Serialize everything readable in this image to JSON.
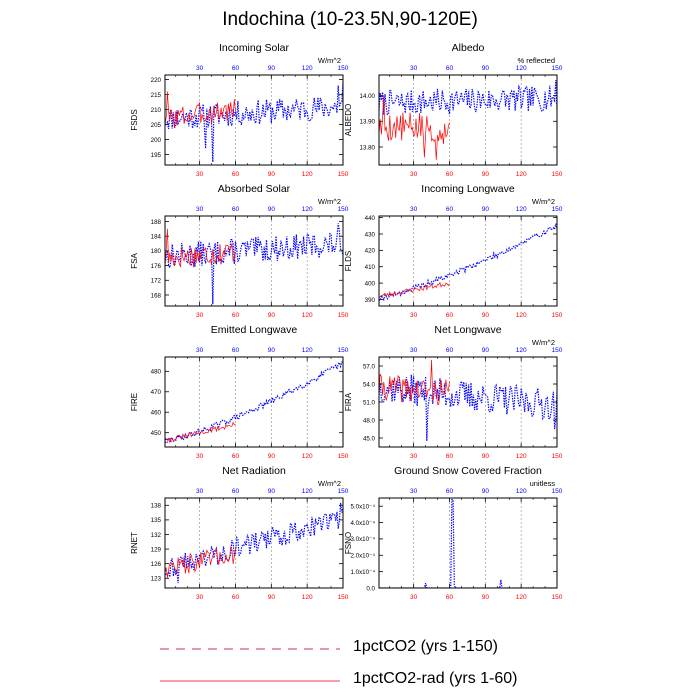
{
  "figure": {
    "title": "Indochina (10-23.5N,90-120E)",
    "series_colors": {
      "1pctCO2": "#0000ff",
      "1pctCO2-rad": "#ff0000"
    },
    "legend": [
      {
        "label": "1pctCO2 (yrs 1-150)",
        "color": "#0000ff",
        "style": "dashed"
      },
      {
        "label": "1pctCO2-rad (yrs 1-60)",
        "color": "#ff0000",
        "style": "solid"
      }
    ]
  },
  "chart_data": [
    {
      "id": "fsds",
      "type": "line",
      "title": "Incoming Solar",
      "ylabel": "FSDS",
      "unit": "W/m^2",
      "xlim": [
        1,
        150
      ],
      "ylim": [
        191.5,
        221.5
      ],
      "yticks": [
        195,
        200,
        205,
        210,
        215,
        220
      ],
      "yticklabels": [
        "195",
        "200",
        "205",
        "210",
        "215",
        "220"
      ],
      "xticks": [
        30,
        60,
        90,
        120,
        150
      ],
      "xticklabels": [
        "30",
        "60",
        "90",
        "120",
        "150"
      ],
      "grid_x": [
        30,
        60,
        90,
        120
      ],
      "series": [
        {
          "name": "1pctCO2",
          "base": [
            207,
            211
          ],
          "amp": 4.2,
          "seed": 11,
          "spikes": [
            [
              41,
              192.5
            ],
            [
              35,
              197
            ],
            [
              146,
              218
            ],
            [
              150,
              219
            ]
          ]
        },
        {
          "name": "1pctCO2-rad",
          "base": [
            207,
            210
          ],
          "amp": 3.8,
          "seed": 3,
          "spikes": [
            [
              3,
              216
            ]
          ]
        }
      ]
    },
    {
      "id": "albedo",
      "type": "line",
      "title": "Albedo",
      "ylabel": "ALBEDO",
      "unit": "% reflected",
      "xlim": [
        1,
        150
      ],
      "ylim": [
        13.73,
        14.08
      ],
      "yticks": [
        13.8,
        13.9,
        14.0
      ],
      "yticklabels": [
        "13.80",
        "13.90",
        "14.00"
      ],
      "xticks": [
        30,
        60,
        90,
        120,
        150
      ],
      "xticklabels": [
        "30",
        "60",
        "90",
        "120",
        "150"
      ],
      "grid_x": [
        30,
        60,
        90,
        120
      ],
      "series": [
        {
          "name": "1pctCO2",
          "base": [
            13.97,
            13.99
          ],
          "amp": 0.05,
          "seed": 7,
          "spikes": [
            [
              149,
              14.06
            ]
          ]
        },
        {
          "name": "1pctCO2-rad",
          "base": [
            13.88,
            13.87
          ],
          "amp": 0.06,
          "seed": 5,
          "spikes": [
            [
              5,
              14.0
            ],
            [
              49,
              13.75
            ],
            [
              39,
              13.76
            ]
          ]
        }
      ]
    },
    {
      "id": "fsa",
      "type": "line",
      "title": "Absorbed Solar",
      "ylabel": "FSA",
      "unit": "W/m^2",
      "xlim": [
        1,
        150
      ],
      "ylim": [
        165,
        189.5
      ],
      "yticks": [
        168,
        172,
        176,
        180,
        184,
        188
      ],
      "yticklabels": [
        "168",
        "172",
        "176",
        "180",
        "184",
        "188"
      ],
      "xticks": [
        30,
        60,
        90,
        120,
        150
      ],
      "xticklabels": [
        "30",
        "60",
        "90",
        "120",
        "150"
      ],
      "grid_x": [
        30,
        60,
        90,
        120
      ],
      "series": [
        {
          "name": "1pctCO2",
          "base": [
            178.5,
            182
          ],
          "amp": 3.5,
          "seed": 13,
          "spikes": [
            [
              41,
              165.5
            ],
            [
              146,
              187.5
            ]
          ]
        },
        {
          "name": "1pctCO2-rad",
          "base": [
            178,
            180
          ],
          "amp": 3.3,
          "seed": 17,
          "spikes": [
            [
              3,
              186
            ]
          ]
        }
      ]
    },
    {
      "id": "flds",
      "type": "line",
      "title": "Incoming Longwave",
      "ylabel": "FLDS",
      "unit": "W/m^2",
      "xlim": [
        1,
        150
      ],
      "ylim": [
        386,
        441
      ],
      "yticks": [
        390,
        400,
        410,
        420,
        430,
        440
      ],
      "yticklabels": [
        "390",
        "400",
        "410",
        "420",
        "430",
        "440"
      ],
      "xticks": [
        30,
        60,
        90,
        120,
        150
      ],
      "xticklabels": [
        "30",
        "60",
        "90",
        "120",
        "150"
      ],
      "grid_x": [
        30,
        60,
        90,
        120
      ],
      "series": [
        {
          "name": "1pctCO2",
          "base": [
            391,
            435
          ],
          "amp": 1.8,
          "seed": 19,
          "curve": 1.25
        },
        {
          "name": "1pctCO2-rad",
          "base": [
            392,
            400
          ],
          "amp": 1.6,
          "seed": 23
        }
      ]
    },
    {
      "id": "fire",
      "type": "line",
      "title": "Emitted Longwave",
      "ylabel": "FIRE",
      "unit": "",
      "xlim": [
        1,
        150
      ],
      "ylim": [
        443,
        487
      ],
      "yticks": [
        450,
        460,
        470,
        480
      ],
      "yticklabels": [
        "450",
        "460",
        "470",
        "480"
      ],
      "xticks": [
        30,
        60,
        90,
        120,
        150
      ],
      "xticklabels": [
        "30",
        "60",
        "90",
        "120",
        "150"
      ],
      "grid_x": [
        30,
        60,
        90,
        120
      ],
      "series": [
        {
          "name": "1pctCO2",
          "base": [
            446,
            484
          ],
          "amp": 1.5,
          "seed": 29,
          "curve": 1.3
        },
        {
          "name": "1pctCO2-rad",
          "base": [
            446,
            454
          ],
          "amp": 1.3,
          "seed": 31
        }
      ]
    },
    {
      "id": "fira",
      "type": "line",
      "title": "Net Longwave",
      "ylabel": "FIRA",
      "unit": "W/m^2",
      "xlim": [
        1,
        150
      ],
      "ylim": [
        43.5,
        58.5
      ],
      "yticks": [
        45,
        48,
        51,
        54,
        57
      ],
      "yticklabels": [
        "45.0",
        "48.0",
        "51.0",
        "54.0",
        "57.0"
      ],
      "xticks": [
        30,
        60,
        90,
        120,
        150
      ],
      "xticklabels": [
        "30",
        "60",
        "90",
        "120",
        "150"
      ],
      "grid_x": [
        30,
        60,
        90,
        120
      ],
      "series": [
        {
          "name": "1pctCO2",
          "base": [
            53.5,
            50.5
          ],
          "amp": 2.6,
          "seed": 37,
          "spikes": [
            [
              41,
              44.5
            ],
            [
              148,
              46.5
            ]
          ]
        },
        {
          "name": "1pctCO2-rad",
          "base": [
            53.5,
            52.5
          ],
          "amp": 2.2,
          "seed": 41,
          "spikes": [
            [
              45,
              58
            ]
          ]
        }
      ]
    },
    {
      "id": "rnet",
      "type": "line",
      "title": "Net Radiation",
      "ylabel": "RNET",
      "unit": "W/m^2",
      "xlim": [
        1,
        150
      ],
      "ylim": [
        121,
        139.5
      ],
      "yticks": [
        123,
        126,
        129,
        132,
        135,
        138
      ],
      "yticklabels": [
        "123",
        "126",
        "129",
        "132",
        "135",
        "138"
      ],
      "xticks": [
        30,
        60,
        90,
        120,
        150
      ],
      "xticklabels": [
        "30",
        "60",
        "90",
        "120",
        "150"
      ],
      "grid_x": [
        30,
        60,
        90,
        120
      ],
      "series": [
        {
          "name": "1pctCO2",
          "base": [
            125,
            135.5
          ],
          "amp": 2.2,
          "seed": 43,
          "spikes": [
            [
              148,
              138.5
            ],
            [
              12,
              122
            ]
          ]
        },
        {
          "name": "1pctCO2-rad",
          "base": [
            125,
            128
          ],
          "amp": 2.0,
          "seed": 47
        }
      ]
    },
    {
      "id": "fsno",
      "type": "line",
      "title": "Ground Snow Covered Fraction",
      "ylabel": "FSNO",
      "unit": "unitless",
      "xlim": [
        1,
        150
      ],
      "ylim": [
        0,
        0.00055
      ],
      "yticks": [
        0,
        0.0001,
        0.0002,
        0.0003,
        0.0004,
        0.0005
      ],
      "yticklabels": [
        "0.0",
        "1.0x10⁻⁴",
        "2.0x10⁻⁴",
        "3.0x10⁻⁴",
        "4.0x10⁻⁴",
        "5.0x10⁻⁴"
      ],
      "xticks": [
        30,
        60,
        90,
        120,
        150
      ],
      "xticklabels": [
        "30",
        "60",
        "90",
        "120",
        "150"
      ],
      "grid_x": [
        30,
        60,
        90,
        120
      ],
      "series": [
        {
          "name": "1pctCO2",
          "zero": true,
          "spikes": [
            [
              40,
              3e-05
            ],
            [
              61,
              1e-05
            ],
            [
              62,
              0.00054
            ],
            [
              63,
              0.00054
            ],
            [
              64,
              2e-05
            ],
            [
              103,
              5e-05
            ]
          ]
        },
        {
          "name": "1pctCO2-rad",
          "zero": true,
          "spikes": [
            [
              62,
              0.0003
            ]
          ]
        }
      ]
    }
  ]
}
